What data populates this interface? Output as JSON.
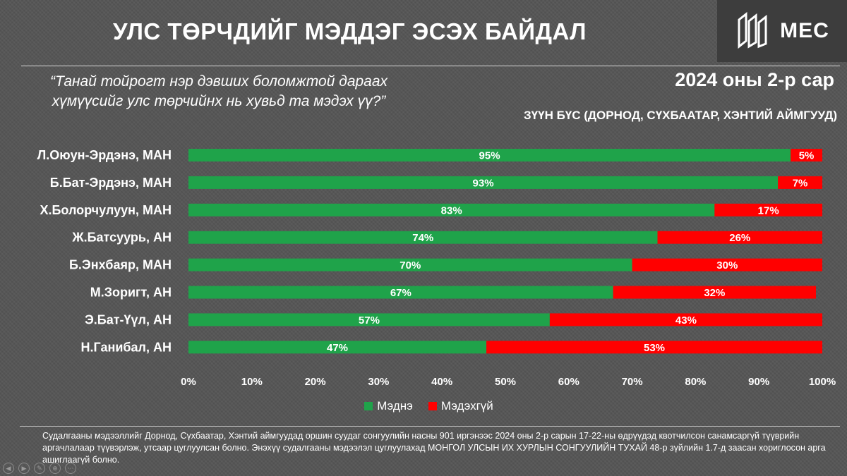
{
  "header": {
    "title": "УЛС ТӨРЧДИЙГ МЭДДЭГ ЭСЭХ БАЙДАЛ",
    "logo_text": "MEC",
    "question_line1": "“Танай тойрогт нэр дэвших боломжтой дараах",
    "question_line2": "хүмүүсийг улс төрчийнх нь хувьд та мэдэх үү?”",
    "period": "2024 оны 2-р сар",
    "region": "ЗҮҮН БҮС (ДОРНОД, СҮХБААТАР, ХЭНТИЙ АЙМГУУД)"
  },
  "colors": {
    "know": "#1fa34a",
    "dont_know": "#ff0000",
    "background": "#555555"
  },
  "chart_data": {
    "type": "bar",
    "orientation": "horizontal",
    "stacked": true,
    "categories": [
      "Л.Оюун-Эрдэнэ, МАН",
      "Б.Бат-Эрдэнэ, МАН",
      "Х.Болорчулуун, МАН",
      "Ж.Батсуурь, АН",
      "Б.Энхбаяр, МАН",
      "М.Зоригт, АН",
      "Э.Бат-Үүл, АН",
      "Н.Ганибал, АН"
    ],
    "series": [
      {
        "name": "Мэднэ",
        "values": [
          95,
          93,
          83,
          74,
          70,
          67,
          57,
          47
        ]
      },
      {
        "name": "Мэдэхгүй",
        "values": [
          5,
          7,
          17,
          26,
          30,
          32,
          43,
          53
        ]
      }
    ],
    "xlim": [
      0,
      100
    ],
    "xticks": [
      "0%",
      "10%",
      "20%",
      "30%",
      "40%",
      "50%",
      "60%",
      "70%",
      "80%",
      "90%",
      "100%"
    ],
    "legend_position": "bottom",
    "grid": false
  },
  "legend": {
    "know": "Мэднэ",
    "dont_know": "Мэдэхгүй"
  },
  "footnote": "Судалгааны мэдээллийг Дорнод, Сүхбаатар, Хэнтий аймгуудад оршин суудаг сонгуулийн насны 901 иргэнээс 2024 оны 2-р сарын 17-22-ны өдрүүдэд квотчилсон санамсаргүй түүврийн аргачлалаар түүвэрлэж, утсаар цуглуулсан болно. Энэхүү судалгааны мэдээлэл цуглуулахад МОНГОЛ УЛСЫН ИХ ХУРЛЫН СОНГУУЛИЙН ТУХАЙ 48-р зүйлийн 1.7-д заасан хориглосон арга ашиглаагүй болно.",
  "controls": [
    {
      "icon": "previous-icon",
      "glyph": "◀"
    },
    {
      "icon": "next-icon",
      "glyph": "▶"
    },
    {
      "icon": "pen-icon",
      "glyph": "✎"
    },
    {
      "icon": "zoom-icon",
      "glyph": "⊕"
    },
    {
      "icon": "menu-icon",
      "glyph": "⋯"
    }
  ]
}
